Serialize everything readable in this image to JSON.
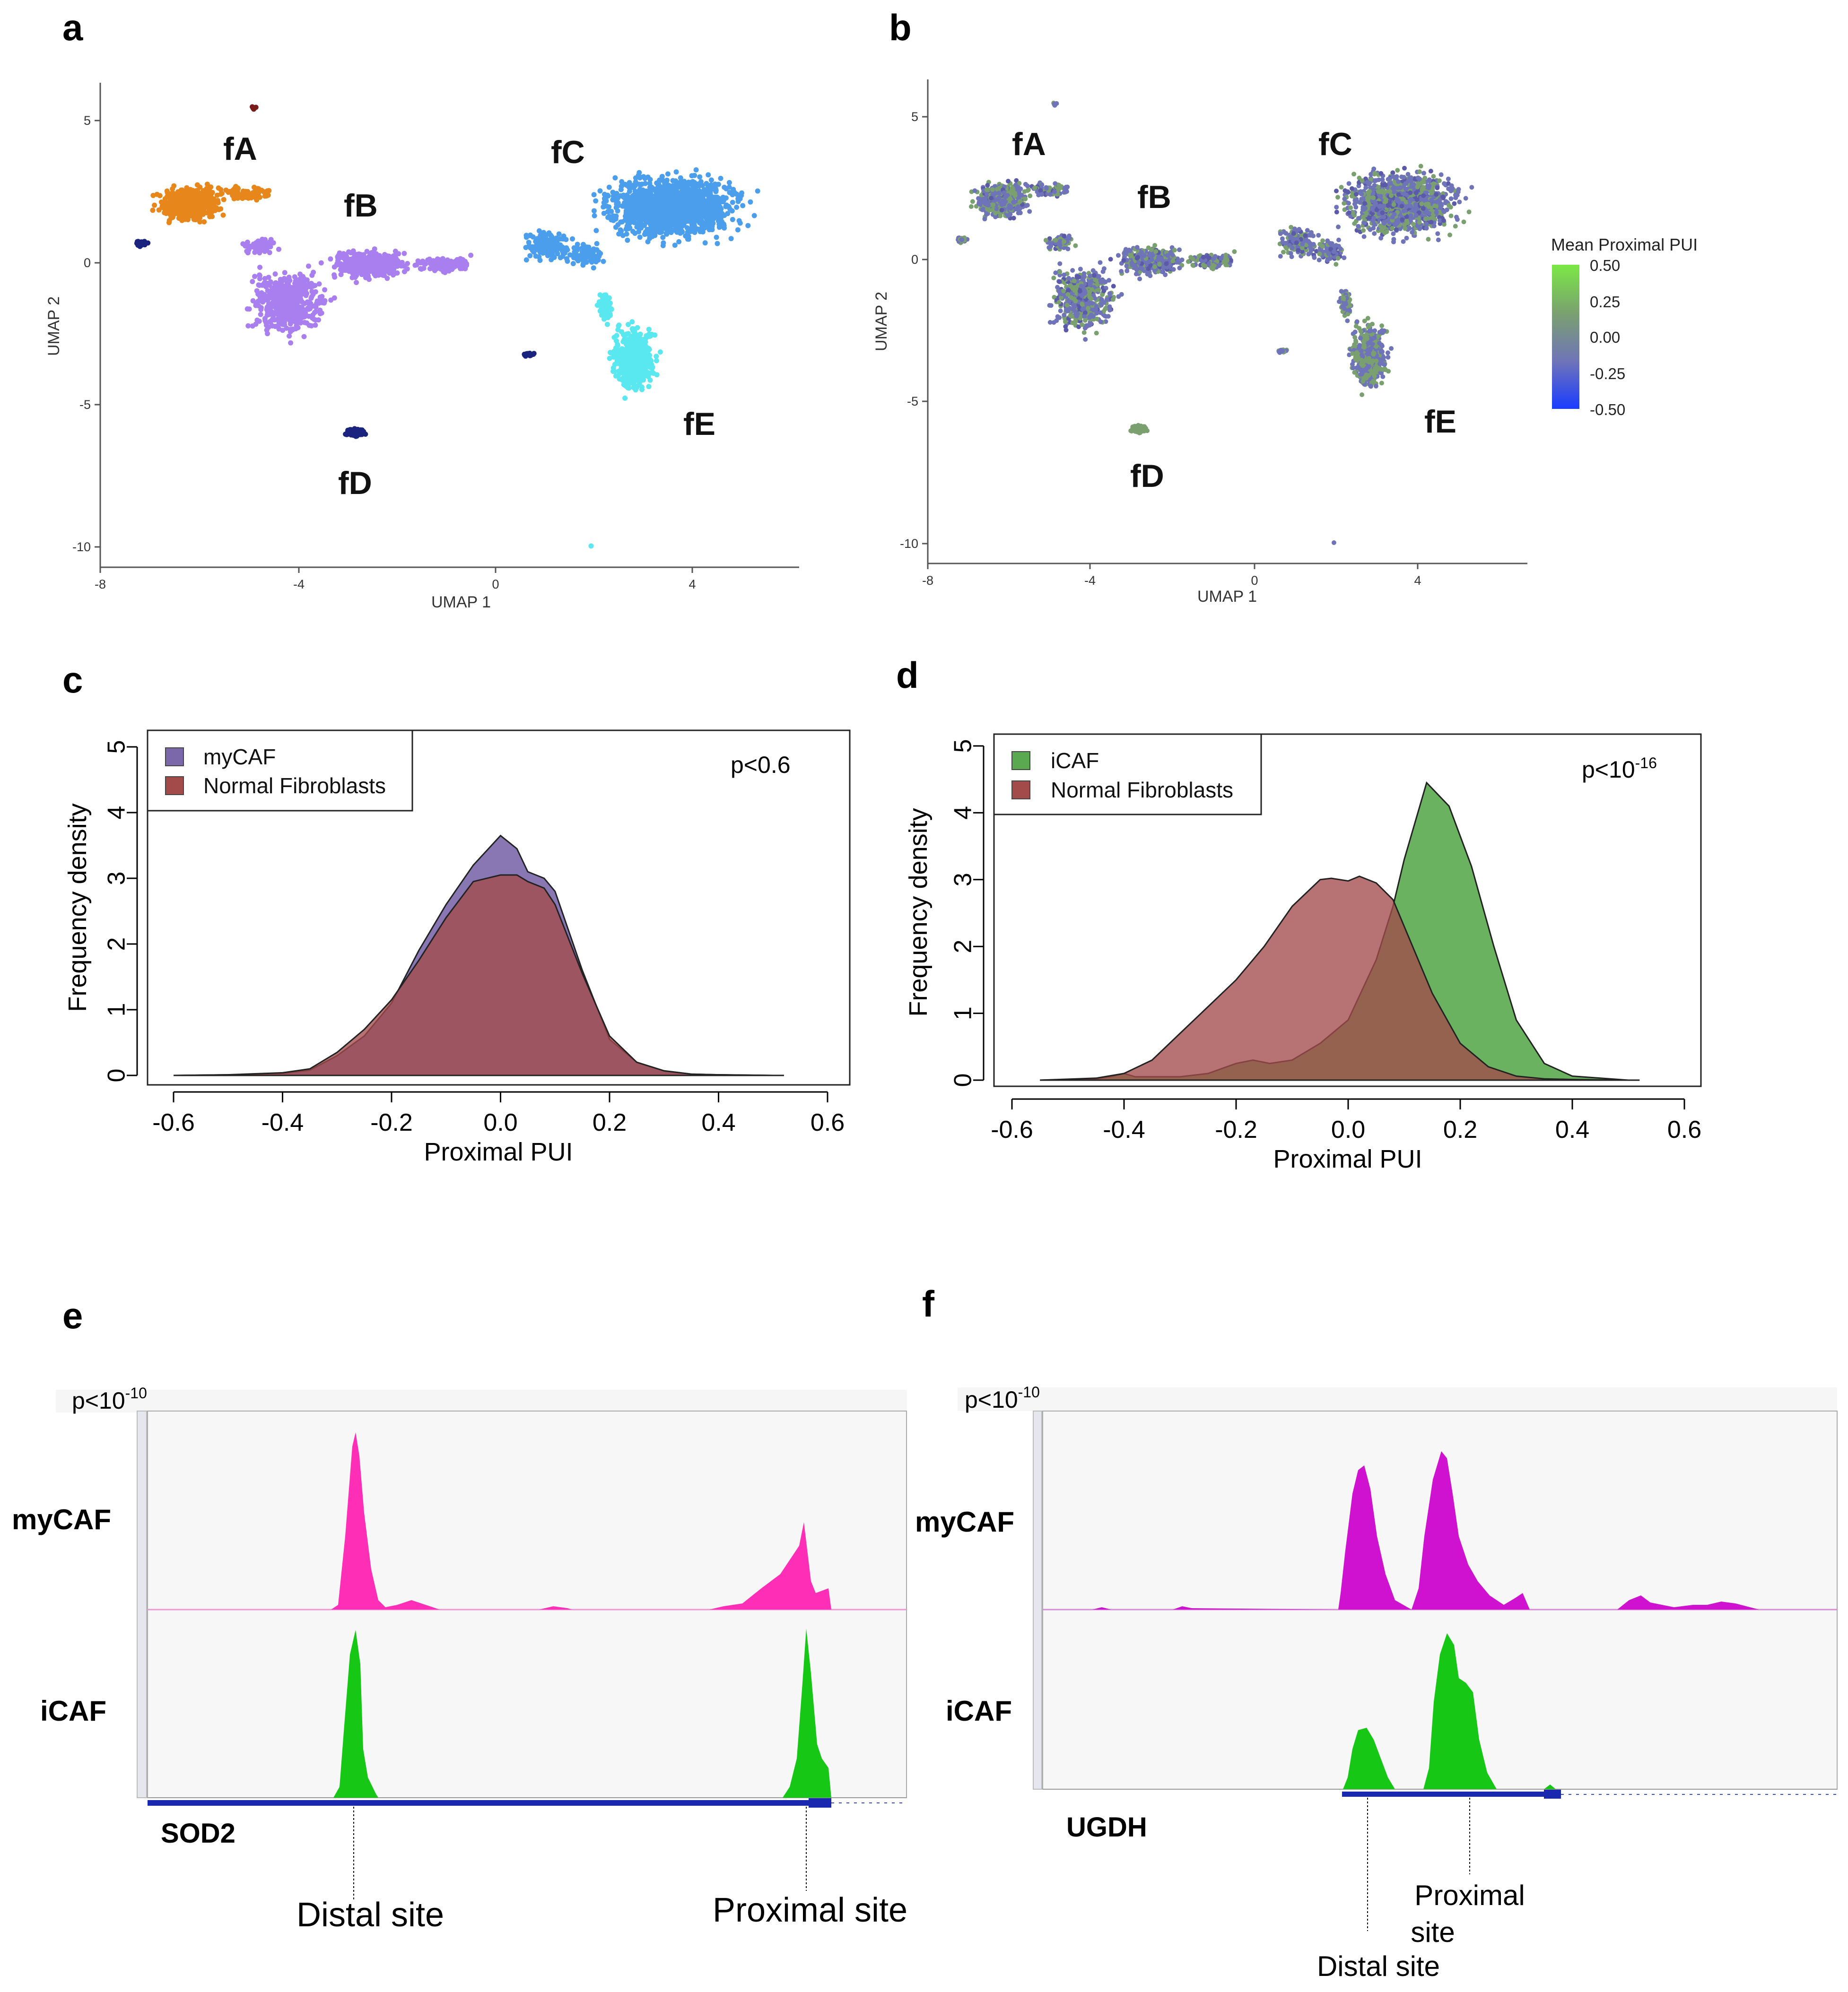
{
  "panels": {
    "a": {
      "label": "a"
    },
    "b": {
      "label": "b"
    },
    "c": {
      "label": "c"
    },
    "d": {
      "label": "d"
    },
    "e": {
      "label": "e"
    },
    "f": {
      "label": "f"
    }
  },
  "umap": {
    "xlabel": "UMAP 1",
    "ylabel": "UMAP 2",
    "x_ticks": [
      "-8",
      "-4",
      "0",
      "4"
    ],
    "y_ticks": [
      "5",
      "0",
      "-5",
      "-10"
    ],
    "clusters": [
      {
        "name": "fA",
        "color": "#e7861a"
      },
      {
        "name": "fB",
        "color": "#a97ff0"
      },
      {
        "name": "fC",
        "color": "#4b9eeb"
      },
      {
        "name": "fD",
        "color": "#1a237e"
      },
      {
        "name": "fE",
        "color": "#5ae8f0"
      }
    ],
    "colorbar": {
      "title": "Mean Proximal PUI",
      "ticks": [
        "0.50",
        "0.25",
        "0.00",
        "-0.25",
        "-0.50"
      ],
      "range": [
        -0.5,
        0.5
      ],
      "colors": [
        "#1a3cff",
        "#6f74b8",
        "#7aa070",
        "#7be845"
      ]
    }
  },
  "chart_data": [
    {
      "type": "area",
      "panel": "c",
      "xlabel": "Proximal PUI",
      "ylabel": "Frequency density",
      "xlim": [
        -0.6,
        0.6
      ],
      "ylim": [
        0,
        5
      ],
      "x_ticks": [
        "-0.6",
        "-0.4",
        "-0.2",
        "0.0",
        "0.2",
        "0.4",
        "0.6"
      ],
      "y_ticks": [
        "0",
        "1",
        "2",
        "3",
        "4",
        "5"
      ],
      "annotation": "p<0.6",
      "legend_position": "top-left",
      "series": [
        {
          "name": "myCAF",
          "color": "#7b68ab",
          "x": [
            -0.6,
            -0.5,
            -0.4,
            -0.35,
            -0.3,
            -0.25,
            -0.2,
            -0.15,
            -0.1,
            -0.05,
            0.0,
            0.03,
            0.05,
            0.08,
            0.1,
            0.15,
            0.2,
            0.25,
            0.3,
            0.35,
            0.4,
            0.5,
            0.52
          ],
          "y": [
            0,
            0.01,
            0.03,
            0.08,
            0.3,
            0.6,
            1.1,
            1.9,
            2.6,
            3.2,
            3.65,
            3.45,
            3.1,
            3.0,
            2.8,
            1.6,
            0.55,
            0.2,
            0.07,
            0.02,
            0.01,
            0.0,
            0
          ]
        },
        {
          "name": "Normal Fibroblasts",
          "color": "#a34b4b",
          "x": [
            -0.6,
            -0.5,
            -0.4,
            -0.35,
            -0.3,
            -0.25,
            -0.2,
            -0.15,
            -0.1,
            -0.05,
            0.0,
            0.03,
            0.05,
            0.08,
            0.1,
            0.15,
            0.2,
            0.25,
            0.3,
            0.35,
            0.4,
            0.5,
            0.52
          ],
          "y": [
            0,
            0.01,
            0.04,
            0.1,
            0.35,
            0.7,
            1.15,
            1.75,
            2.4,
            2.95,
            3.05,
            3.05,
            2.95,
            2.85,
            2.6,
            1.55,
            0.6,
            0.2,
            0.07,
            0.02,
            0.01,
            0.0,
            0
          ]
        }
      ]
    },
    {
      "type": "area",
      "panel": "d",
      "xlabel": "Proximal PUI",
      "ylabel": "Frequency density",
      "xlim": [
        -0.6,
        0.6
      ],
      "ylim": [
        0,
        5
      ],
      "x_ticks": [
        "-0.6",
        "-0.4",
        "-0.2",
        "0.0",
        "0.2",
        "0.4",
        "0.6"
      ],
      "y_ticks": [
        "0",
        "1",
        "2",
        "3",
        "4",
        "5"
      ],
      "annotation_base": "p<10",
      "annotation_exp": "-16",
      "legend_position": "top-left",
      "series": [
        {
          "name": "iCAF",
          "color": "#5aa84f",
          "x": [
            -0.55,
            -0.45,
            -0.42,
            -0.4,
            -0.38,
            -0.3,
            -0.25,
            -0.2,
            -0.17,
            -0.14,
            -0.1,
            -0.05,
            0.0,
            0.05,
            0.08,
            0.1,
            0.14,
            0.18,
            0.22,
            0.26,
            0.3,
            0.35,
            0.4,
            0.5,
            0.52
          ],
          "y": [
            0,
            0.02,
            0.06,
            0.1,
            0.05,
            0.05,
            0.1,
            0.25,
            0.3,
            0.25,
            0.3,
            0.55,
            0.9,
            1.8,
            2.6,
            3.3,
            4.45,
            4.1,
            3.2,
            2.0,
            0.9,
            0.25,
            0.06,
            0.0,
            0
          ]
        },
        {
          "name": "Normal Fibroblasts",
          "color": "#a34b4b",
          "x": [
            -0.55,
            -0.45,
            -0.4,
            -0.35,
            -0.3,
            -0.25,
            -0.2,
            -0.15,
            -0.1,
            -0.05,
            -0.03,
            0.0,
            0.02,
            0.05,
            0.08,
            0.1,
            0.15,
            0.2,
            0.25,
            0.3,
            0.35,
            0.4,
            0.5,
            0.52
          ],
          "y": [
            0,
            0.03,
            0.1,
            0.3,
            0.7,
            1.1,
            1.5,
            2.0,
            2.6,
            3.0,
            3.02,
            2.98,
            3.05,
            2.95,
            2.7,
            2.3,
            1.3,
            0.55,
            0.2,
            0.06,
            0.02,
            0.01,
            0.0,
            0
          ]
        }
      ]
    }
  ],
  "tracks_e": {
    "pvalue_base": "p<10",
    "pvalue_exp": "-10",
    "tracks": [
      {
        "label": "myCAF",
        "color": "#ff2eb7"
      },
      {
        "label": "iCAF",
        "color": "#16c716"
      }
    ],
    "gene": "SOD2",
    "sites": [
      "Distal site",
      "Proximal site"
    ]
  },
  "tracks_f": {
    "pvalue_base": "p<10",
    "pvalue_exp": "-10",
    "tracks": [
      {
        "label": "myCAF",
        "color": "#cf12cf"
      },
      {
        "label": "iCAF",
        "color": "#16c716"
      }
    ],
    "gene": "UGDH",
    "proximal_line1": "Proximal",
    "proximal_line2": "site",
    "distal": "Distal site"
  }
}
